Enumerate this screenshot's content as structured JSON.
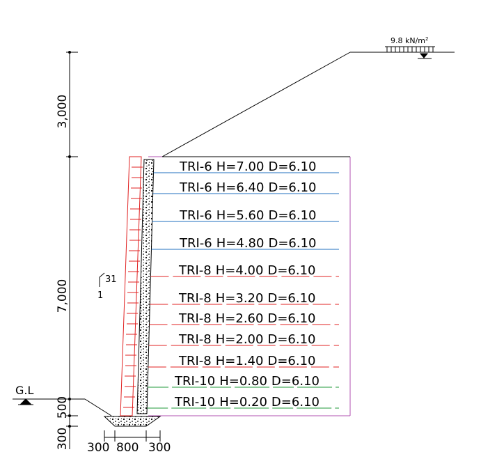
{
  "surcharge": {
    "label": "9.8 kN/m",
    "sup": "2"
  },
  "ground": {
    "label": "G.L"
  },
  "slope": {
    "rise": "31",
    "run": "1"
  },
  "vertical_dims": [
    "3,000",
    "7,000",
    "500",
    "300"
  ],
  "footing_dims": [
    "300",
    "800",
    "300"
  ],
  "layers": [
    {
      "type": "TRI-6",
      "h": "H=7.00",
      "d": "D=6.10",
      "color": "#1f6fbf"
    },
    {
      "type": "TRI-6",
      "h": "H=6.40",
      "d": "D=6.10",
      "color": "#1f6fbf"
    },
    {
      "type": "TRI-6",
      "h": "H=5.60",
      "d": "D=6.10",
      "color": "#1f6fbf"
    },
    {
      "type": "TRI-6",
      "h": "H=4.80",
      "d": "D=6.10",
      "color": "#1f6fbf"
    },
    {
      "type": "TRI-8",
      "h": "H=4.00",
      "d": "D=6.10",
      "color": "#e02020"
    },
    {
      "type": "TRI-8",
      "h": "H=3.20",
      "d": "D=6.10",
      "color": "#e02020"
    },
    {
      "type": "TRI-8",
      "h": "H=2.60",
      "d": "D=6.10",
      "color": "#e02020"
    },
    {
      "type": "TRI-8",
      "h": "H=2.00",
      "d": "D=6.10",
      "color": "#e02020"
    },
    {
      "type": "TRI-8",
      "h": "H=1.40",
      "d": "D=6.10",
      "color": "#e02020"
    },
    {
      "type": "TRI-10",
      "h": "H=0.80",
      "d": "D=6.10",
      "color": "#1f9a3a"
    },
    {
      "type": "TRI-10",
      "h": "H=0.20",
      "d": "D=6.10",
      "color": "#1f9a3a"
    }
  ]
}
